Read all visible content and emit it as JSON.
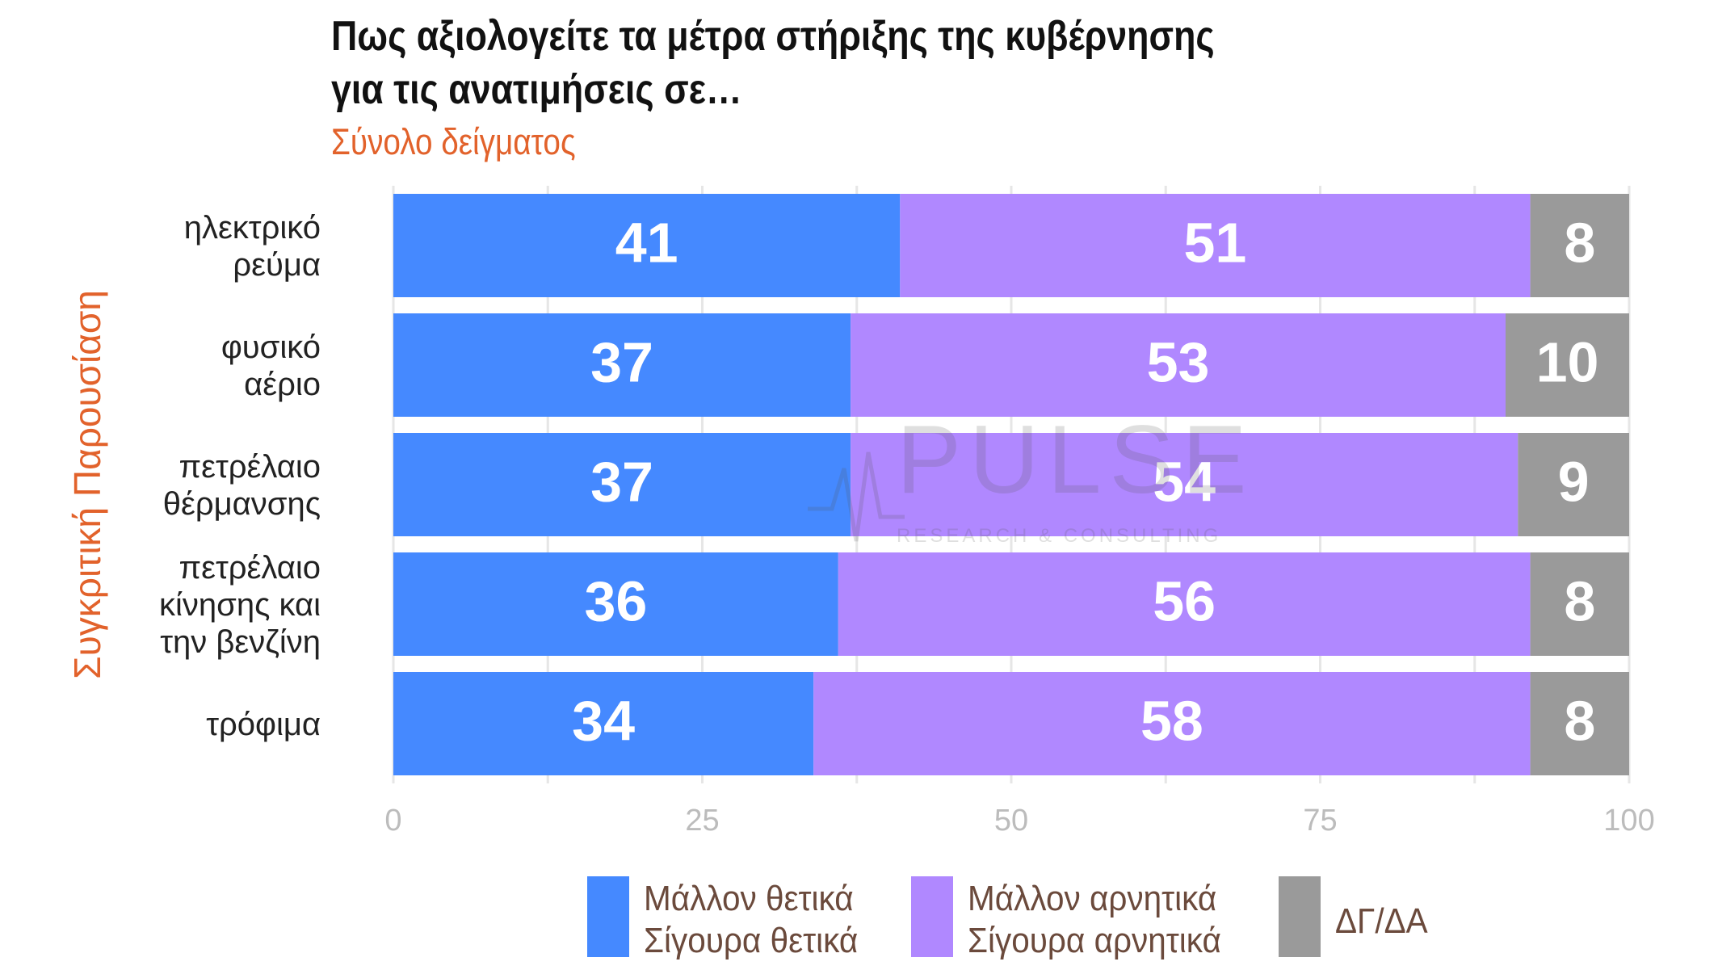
{
  "title": "Πως αξιολογείτε τα μέτρα στήριξης της κυβέρνησης\nγια τις ανατιμήσεις σε…",
  "subtitle": "Σύνολο δείγματος",
  "side_label": "Συγκριτική  Παρουσίαση",
  "watermark": {
    "name": "PULSE",
    "tagline": "RESEARCH & CONSULTING"
  },
  "legend": [
    {
      "label": "Μάλλον θετικά\nΣίγουρα θετικά",
      "color": "#4589ff"
    },
    {
      "label": "Μάλλον αρνητικά\nΣίγουρα αρνητικά",
      "color": "#b088ff"
    },
    {
      "label": "ΔΓ/ΔΑ",
      "color": "#9a9a9a"
    }
  ],
  "chart_data": {
    "type": "bar",
    "orientation": "horizontal",
    "stacked": true,
    "title": "Πως αξιολογείτε τα μέτρα στήριξης της κυβέρνησης για τις ανατιμήσεις σε…",
    "subtitle": "Σύνολο δείγματος",
    "ylabel": "Συγκριτική  Παρουσίαση",
    "categories": [
      "ηλεκτρικό\nρεύμα",
      "φυσικό\nαέριο",
      "πετρέλαιο\nθέρμανσης",
      "πετρέλαιο\nκίνησης και\nτην βενζίνη",
      "τρόφιμα"
    ],
    "series": [
      {
        "name": "Μάλλον θετικά Σίγουρα θετικά",
        "color": "#4589ff",
        "values": [
          41,
          37,
          37,
          36,
          34
        ]
      },
      {
        "name": "Μάλλον αρνητικά Σίγουρα αρνητικά",
        "color": "#b088ff",
        "values": [
          51,
          53,
          54,
          56,
          58
        ]
      },
      {
        "name": "ΔΓ/ΔΑ",
        "color": "#9a9a9a",
        "values": [
          8,
          10,
          9,
          8,
          8
        ]
      }
    ],
    "xlim": [
      0,
      100
    ],
    "xticks": [
      0,
      25,
      50,
      75,
      100
    ],
    "grid": true,
    "legend_position": "bottom"
  }
}
